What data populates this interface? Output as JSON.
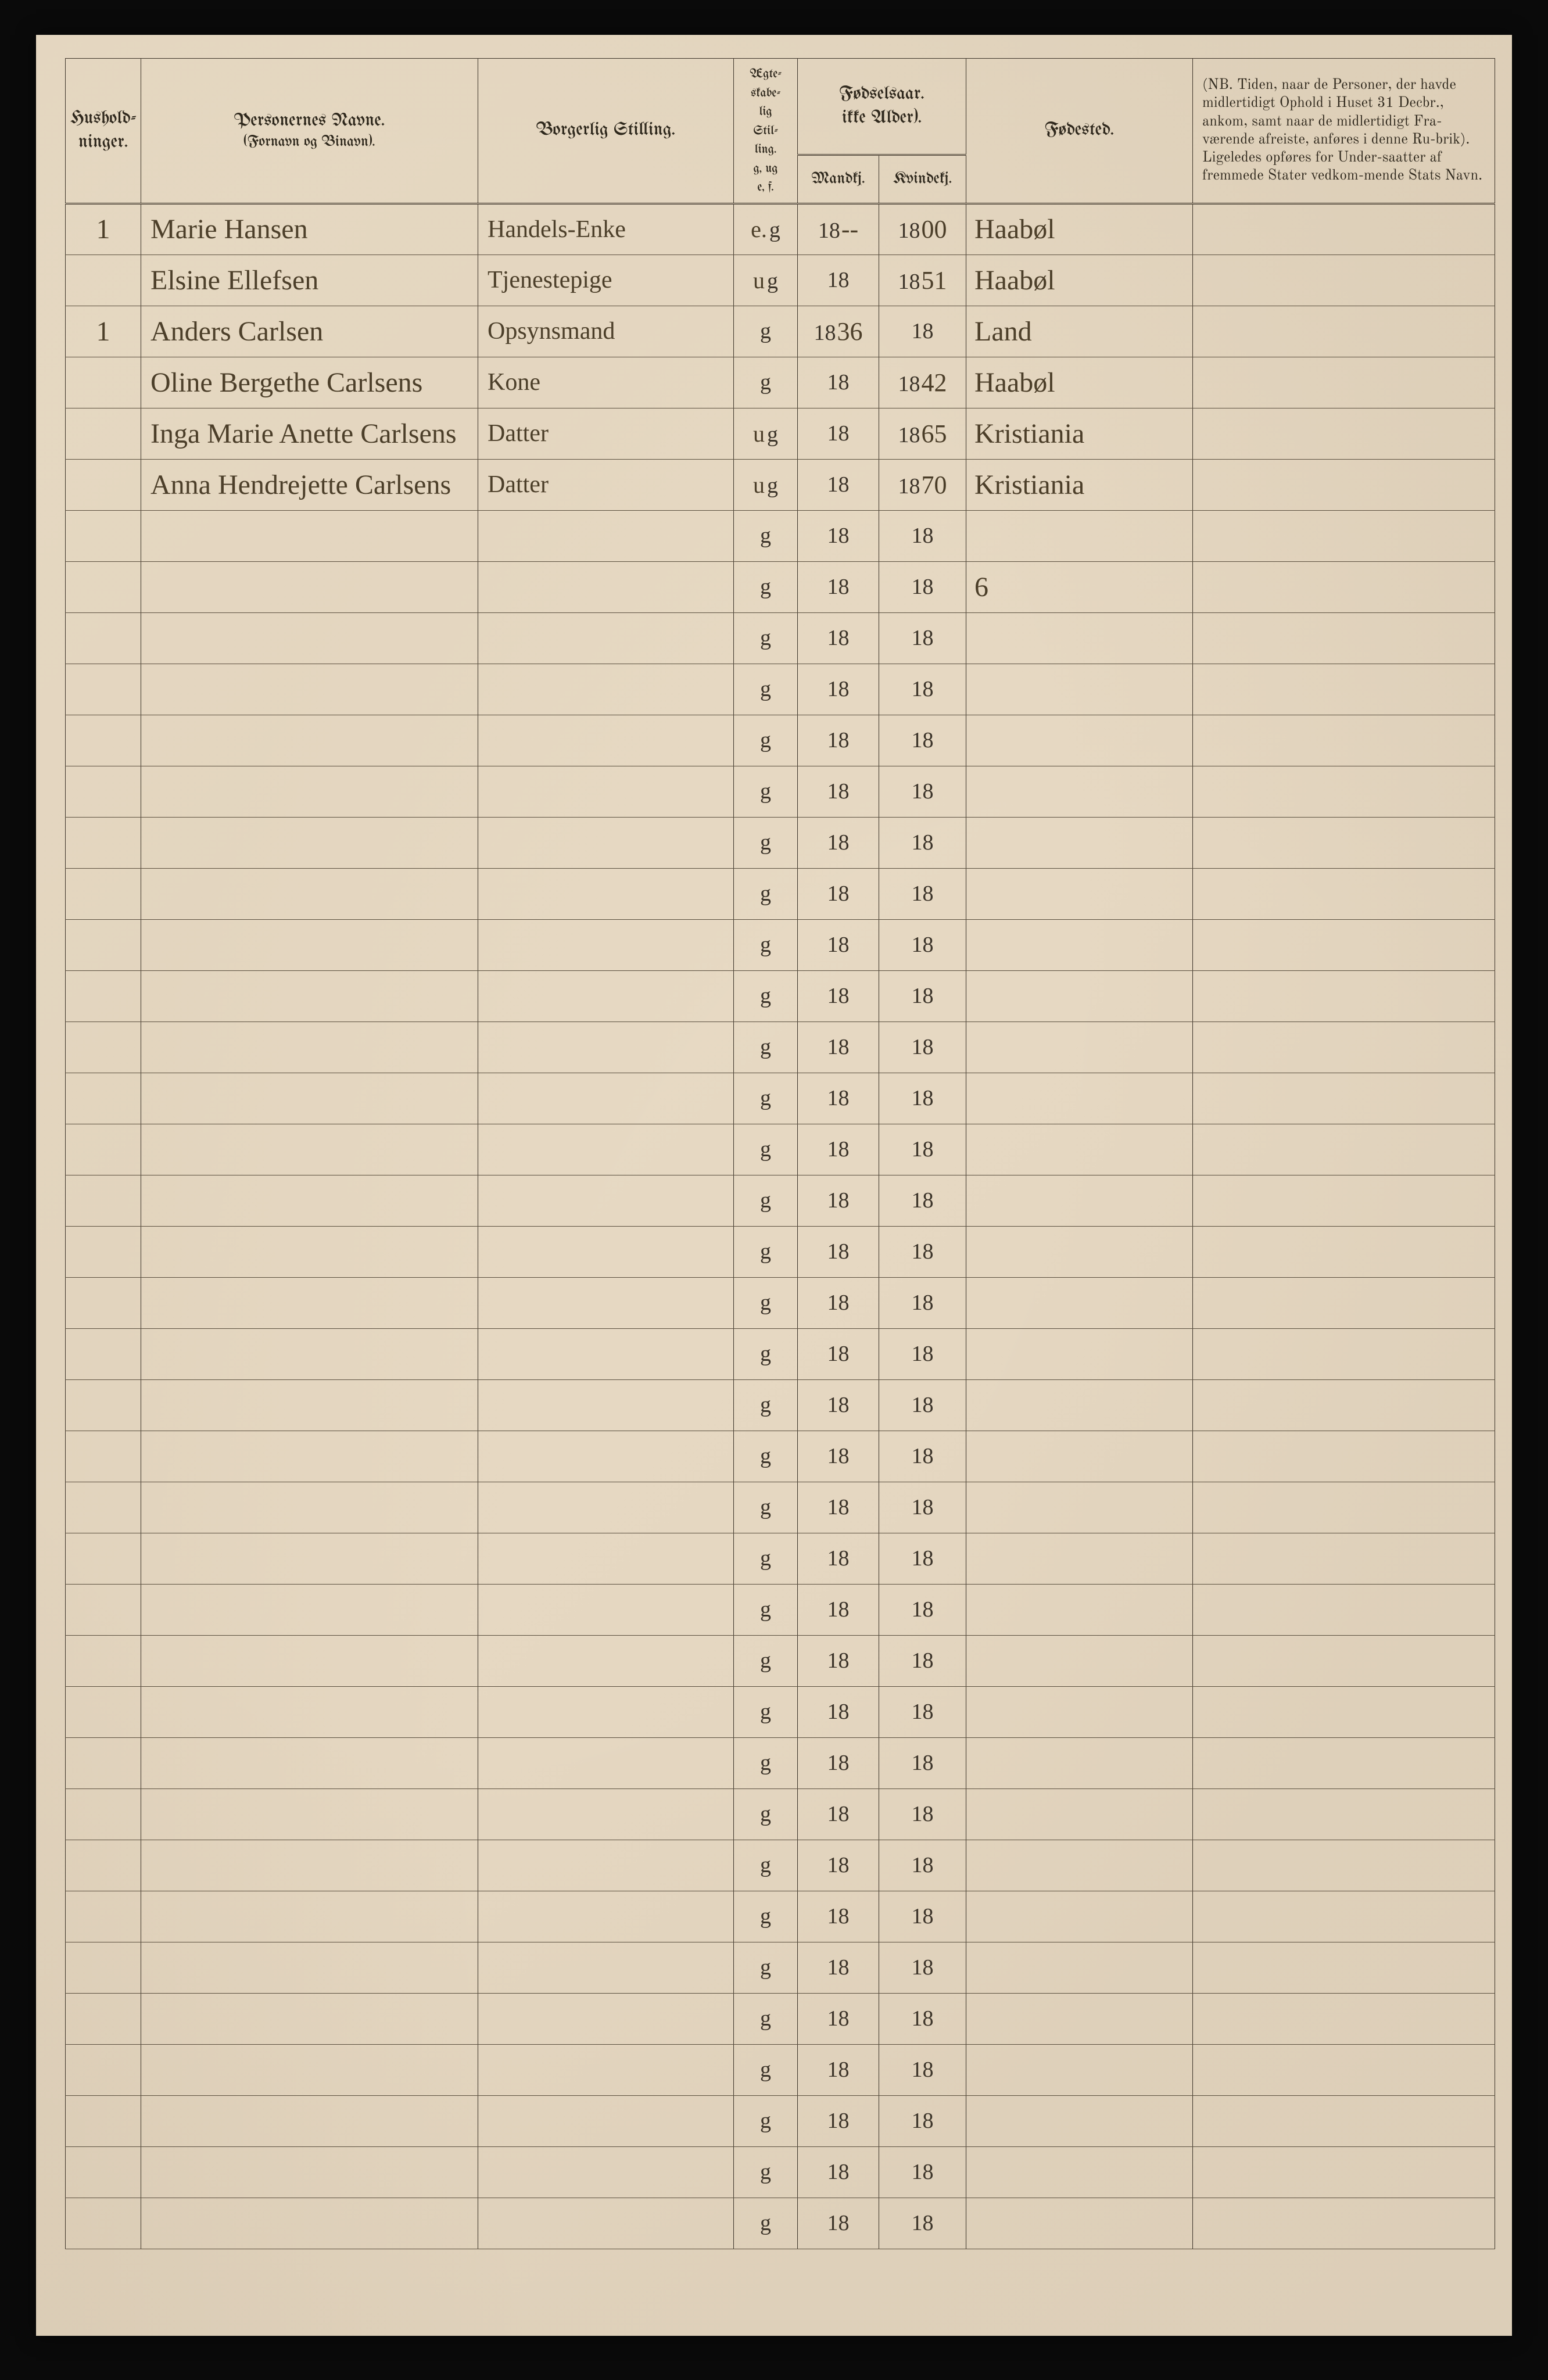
{
  "paper_bg": "#e8dcc8",
  "ink": "#3a3228",
  "hand_ink": "#4a3d28",
  "headers": {
    "husholdninger": "Hushold-\nninger.",
    "personernes_navne": "Personernes Navne.",
    "fornavn_binavn": "(Fornavn og Binavn).",
    "borgerlig_stilling": "Borgerlig Stilling.",
    "aegte": "Ægte-\nskabe-\nlig\nStil-\nling.\ng, ug\ne, f.",
    "fodselsaar": "Fødselsaar.\nikke Alder).",
    "mandkj": "Mandkj.",
    "kvindekj": "Kvindekj.",
    "fodested": "Fødested.",
    "nb": "(NB. Tiden, naar de Personer, der havde midlertidigt Ophold i Huset 31 Decbr., ankom, samt naar de midlertidigt Fra-værende afreiste, anføres i denne Ru-brik). Ligeledes opføres for Under-saatter af fremmede Stater vedkom-mende Stats Navn."
  },
  "printed_per_row": {
    "aegte_g": "g",
    "mand_prefix": "18",
    "kvind_prefix": "18"
  },
  "special_row8_mark": "6",
  "rows": [
    {
      "hush": "1",
      "name": "Marie Hansen",
      "stilling": "Handels-Enke",
      "aegte_hand": "e.",
      "mand": "--",
      "kvind": "00",
      "fodested": "Haabøl"
    },
    {
      "hush": "",
      "name": "Elsine Ellefsen",
      "stilling": "Tjenestepige",
      "aegte_hand": "u",
      "mand": "",
      "kvind": "51",
      "fodested": "Haabøl"
    },
    {
      "hush": "1",
      "name": "Anders Carlsen",
      "stilling": "Opsynsmand",
      "aegte_hand": "",
      "mand": "36",
      "kvind": "",
      "fodested": "Land"
    },
    {
      "hush": "",
      "name": "Oline Bergethe Carlsens",
      "stilling": "Kone",
      "aegte_hand": "",
      "mand": "",
      "kvind": "42",
      "fodested": "Haabøl"
    },
    {
      "hush": "",
      "name": "Inga Marie Anette Carlsens",
      "stilling": "Datter",
      "aegte_hand": "u",
      "mand": "",
      "kvind": "65",
      "fodested": "Kristiania"
    },
    {
      "hush": "",
      "name": "Anna Hendrejette Carlsens",
      "stilling": "Datter",
      "aegte_hand": "u",
      "mand": "",
      "kvind": "70",
      "fodested": "Kristiania"
    },
    {
      "hush": "",
      "name": "",
      "stilling": "",
      "aegte_hand": "",
      "mand": "",
      "kvind": "",
      "fodested": ""
    },
    {
      "hush": "",
      "name": "",
      "stilling": "",
      "aegte_hand": "",
      "mand": "",
      "kvind": "",
      "fodested": ""
    },
    {
      "hush": "",
      "name": "",
      "stilling": "",
      "aegte_hand": "",
      "mand": "",
      "kvind": "",
      "fodested": ""
    },
    {
      "hush": "",
      "name": "",
      "stilling": "",
      "aegte_hand": "",
      "mand": "",
      "kvind": "",
      "fodested": ""
    },
    {
      "hush": "",
      "name": "",
      "stilling": "",
      "aegte_hand": "",
      "mand": "",
      "kvind": "",
      "fodested": ""
    },
    {
      "hush": "",
      "name": "",
      "stilling": "",
      "aegte_hand": "",
      "mand": "",
      "kvind": "",
      "fodested": ""
    },
    {
      "hush": "",
      "name": "",
      "stilling": "",
      "aegte_hand": "",
      "mand": "",
      "kvind": "",
      "fodested": ""
    },
    {
      "hush": "",
      "name": "",
      "stilling": "",
      "aegte_hand": "",
      "mand": "",
      "kvind": "",
      "fodested": ""
    },
    {
      "hush": "",
      "name": "",
      "stilling": "",
      "aegte_hand": "",
      "mand": "",
      "kvind": "",
      "fodested": ""
    },
    {
      "hush": "",
      "name": "",
      "stilling": "",
      "aegte_hand": "",
      "mand": "",
      "kvind": "",
      "fodested": ""
    },
    {
      "hush": "",
      "name": "",
      "stilling": "",
      "aegte_hand": "",
      "mand": "",
      "kvind": "",
      "fodested": ""
    },
    {
      "hush": "",
      "name": "",
      "stilling": "",
      "aegte_hand": "",
      "mand": "",
      "kvind": "",
      "fodested": ""
    },
    {
      "hush": "",
      "name": "",
      "stilling": "",
      "aegte_hand": "",
      "mand": "",
      "kvind": "",
      "fodested": ""
    },
    {
      "hush": "",
      "name": "",
      "stilling": "",
      "aegte_hand": "",
      "mand": "",
      "kvind": "",
      "fodested": ""
    },
    {
      "hush": "",
      "name": "",
      "stilling": "",
      "aegte_hand": "",
      "mand": "",
      "kvind": "",
      "fodested": ""
    },
    {
      "hush": "",
      "name": "",
      "stilling": "",
      "aegte_hand": "",
      "mand": "",
      "kvind": "",
      "fodested": ""
    },
    {
      "hush": "",
      "name": "",
      "stilling": "",
      "aegte_hand": "",
      "mand": "",
      "kvind": "",
      "fodested": ""
    },
    {
      "hush": "",
      "name": "",
      "stilling": "",
      "aegte_hand": "",
      "mand": "",
      "kvind": "",
      "fodested": ""
    },
    {
      "hush": "",
      "name": "",
      "stilling": "",
      "aegte_hand": "",
      "mand": "",
      "kvind": "",
      "fodested": ""
    },
    {
      "hush": "",
      "name": "",
      "stilling": "",
      "aegte_hand": "",
      "mand": "",
      "kvind": "",
      "fodested": ""
    },
    {
      "hush": "",
      "name": "",
      "stilling": "",
      "aegte_hand": "",
      "mand": "",
      "kvind": "",
      "fodested": ""
    },
    {
      "hush": "",
      "name": "",
      "stilling": "",
      "aegte_hand": "",
      "mand": "",
      "kvind": "",
      "fodested": ""
    },
    {
      "hush": "",
      "name": "",
      "stilling": "",
      "aegte_hand": "",
      "mand": "",
      "kvind": "",
      "fodested": ""
    },
    {
      "hush": "",
      "name": "",
      "stilling": "",
      "aegte_hand": "",
      "mand": "",
      "kvind": "",
      "fodested": ""
    },
    {
      "hush": "",
      "name": "",
      "stilling": "",
      "aegte_hand": "",
      "mand": "",
      "kvind": "",
      "fodested": ""
    },
    {
      "hush": "",
      "name": "",
      "stilling": "",
      "aegte_hand": "",
      "mand": "",
      "kvind": "",
      "fodested": ""
    },
    {
      "hush": "",
      "name": "",
      "stilling": "",
      "aegte_hand": "",
      "mand": "",
      "kvind": "",
      "fodested": ""
    },
    {
      "hush": "",
      "name": "",
      "stilling": "",
      "aegte_hand": "",
      "mand": "",
      "kvind": "",
      "fodested": ""
    },
    {
      "hush": "",
      "name": "",
      "stilling": "",
      "aegte_hand": "",
      "mand": "",
      "kvind": "",
      "fodested": ""
    },
    {
      "hush": "",
      "name": "",
      "stilling": "",
      "aegte_hand": "",
      "mand": "",
      "kvind": "",
      "fodested": ""
    },
    {
      "hush": "",
      "name": "",
      "stilling": "",
      "aegte_hand": "",
      "mand": "",
      "kvind": "",
      "fodested": ""
    },
    {
      "hush": "",
      "name": "",
      "stilling": "",
      "aegte_hand": "",
      "mand": "",
      "kvind": "",
      "fodested": ""
    },
    {
      "hush": "",
      "name": "",
      "stilling": "",
      "aegte_hand": "",
      "mand": "",
      "kvind": "",
      "fodested": ""
    },
    {
      "hush": "",
      "name": "",
      "stilling": "",
      "aegte_hand": "",
      "mand": "",
      "kvind": "",
      "fodested": ""
    }
  ]
}
